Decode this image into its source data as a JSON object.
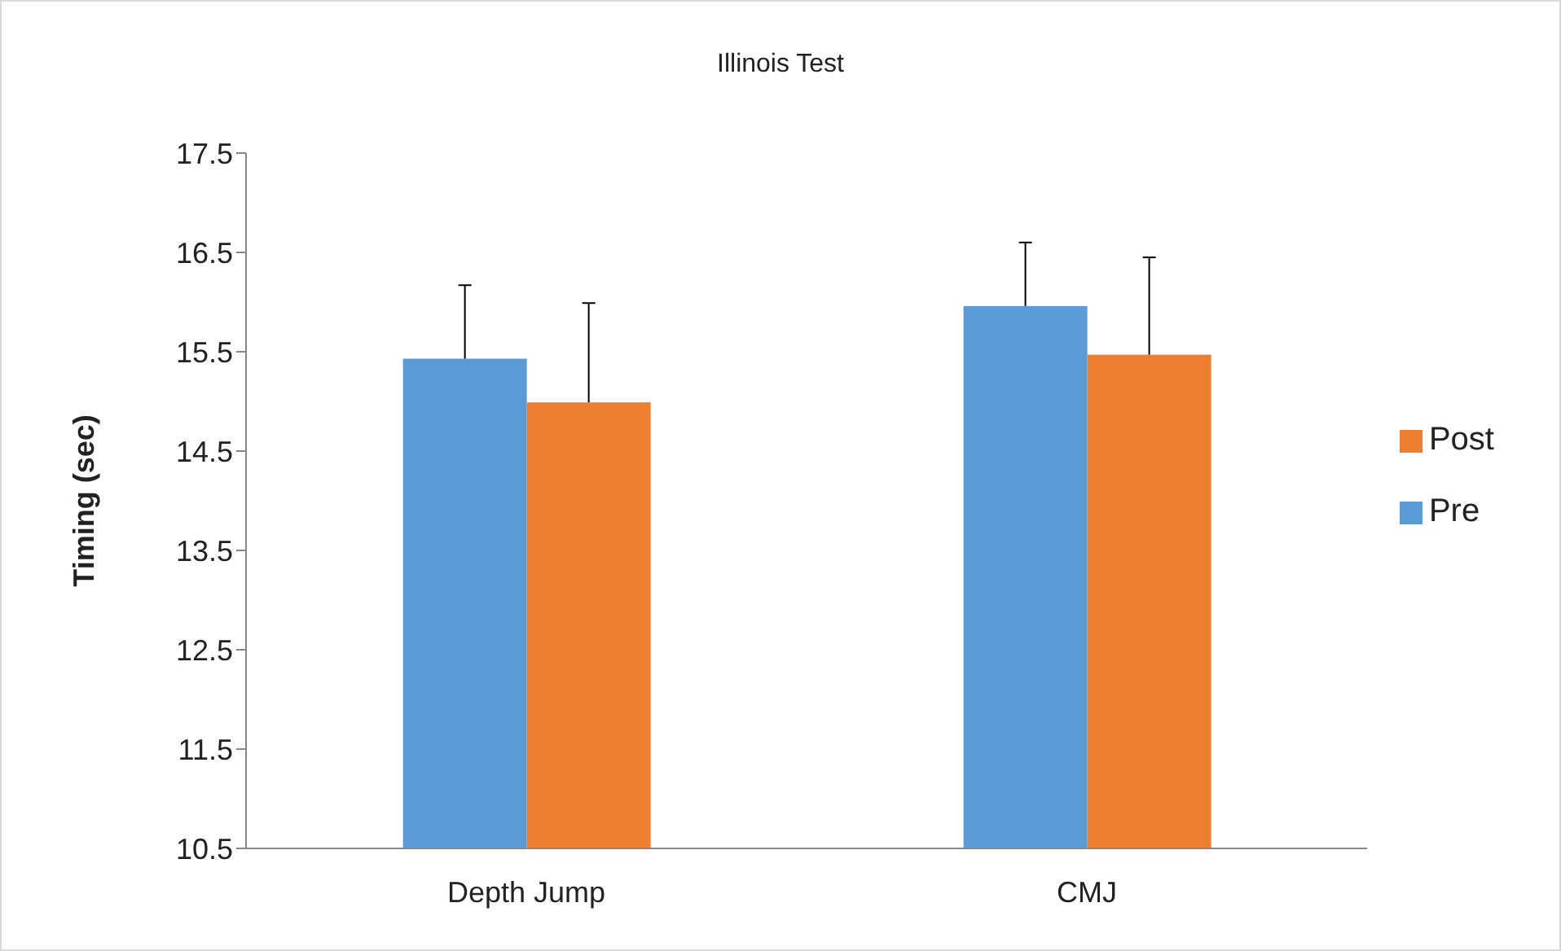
{
  "chart_data": {
    "type": "bar",
    "title": "Illinois Test",
    "ylabel": "Timing (sec)",
    "categories": [
      "Depth Jump",
      "CMJ"
    ],
    "series": [
      {
        "name": "Pre",
        "color": "#5b9bd5",
        "values": [
          15.43,
          15.96
        ],
        "errors": [
          [
            15.43,
            16.17
          ],
          [
            15.96,
            16.6
          ]
        ]
      },
      {
        "name": "Post",
        "color": "#ed7d31",
        "values": [
          14.99,
          15.47
        ],
        "errors": [
          [
            14.99,
            15.99
          ],
          [
            15.47,
            16.45
          ]
        ]
      }
    ],
    "ylim": [
      10.5,
      17.5
    ],
    "yticks": [
      10.5,
      11.5,
      12.5,
      13.5,
      14.5,
      15.5,
      16.5,
      17.5
    ],
    "grid": false,
    "legend": "right"
  }
}
